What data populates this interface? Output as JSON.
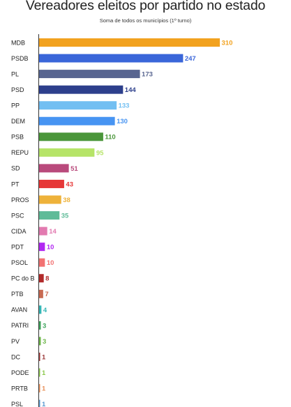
{
  "chart_data": {
    "type": "bar",
    "orientation": "horizontal",
    "title": "Vereadores eleitos por partido no estado",
    "subtitle": "Soma de todos os municípios (1º turno)",
    "categories": [
      "MDB",
      "PSDB",
      "PL",
      "PSD",
      "PP",
      "DEM",
      "PSB",
      "REPU",
      "SD",
      "PT",
      "PROS",
      "PSC",
      "CIDA",
      "PDT",
      "PSOL",
      "PC do B",
      "PTB",
      "AVAN",
      "PATRI",
      "PV",
      "DC",
      "PODE",
      "PRTB",
      "PSL"
    ],
    "values": [
      310,
      247,
      173,
      144,
      133,
      130,
      110,
      95,
      51,
      43,
      38,
      35,
      14,
      10,
      10,
      8,
      7,
      4,
      3,
      3,
      1,
      1,
      1,
      1
    ],
    "colors": [
      "#f2a21f",
      "#3a66d9",
      "#586590",
      "#2d3f8c",
      "#72bff2",
      "#4794f2",
      "#4a963a",
      "#b6e468",
      "#b94a7c",
      "#e63737",
      "#eeb23a",
      "#5fbb98",
      "#e27ab0",
      "#b128f2",
      "#f27272",
      "#b12a2a",
      "#c86a52",
      "#35b6b6",
      "#3fa35c",
      "#6eb64a",
      "#9c3a3a",
      "#8cc84c",
      "#e8905a",
      "#5a9ad0"
    ],
    "xlim": [
      0,
      310
    ],
    "grid": false
  }
}
